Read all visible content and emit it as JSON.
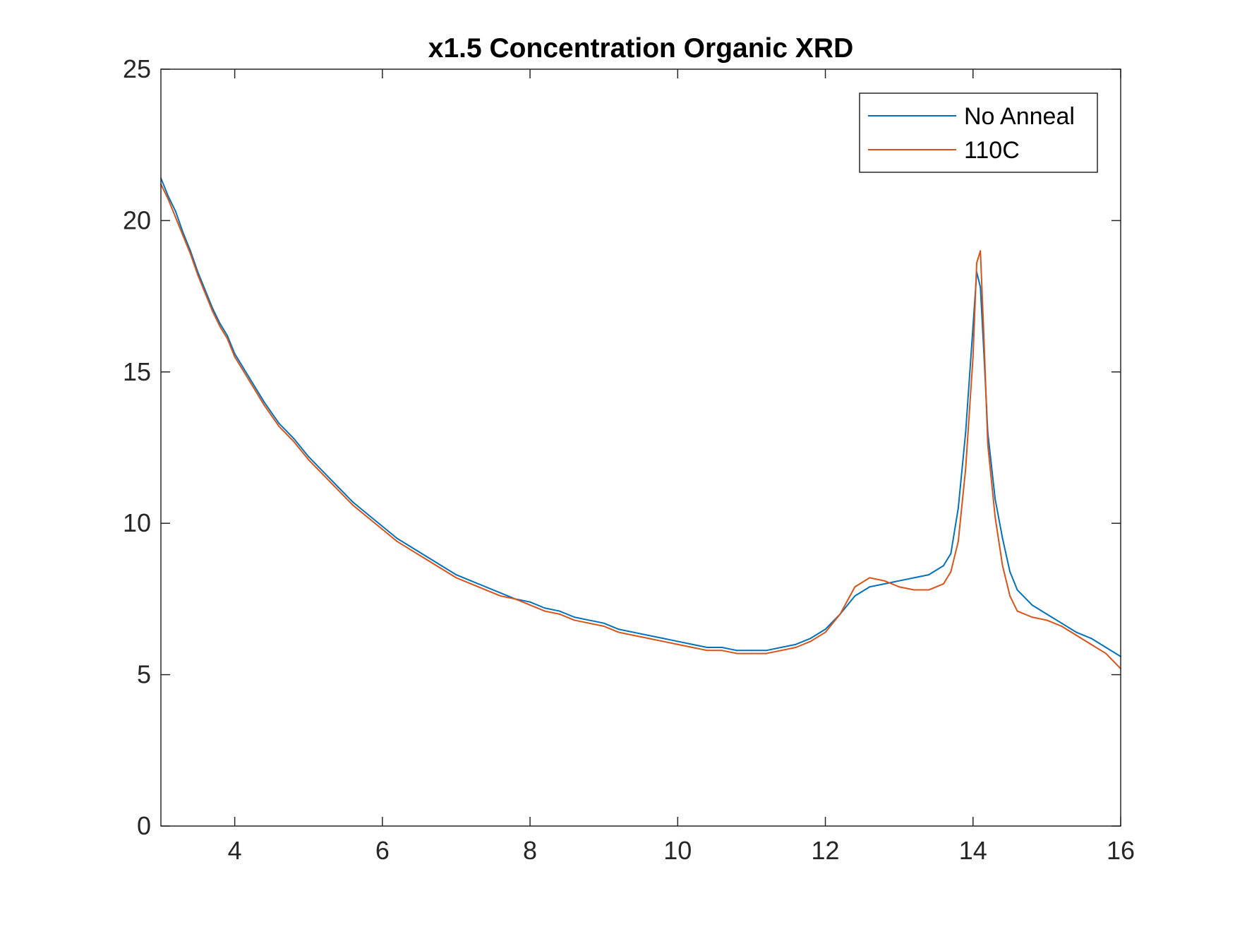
{
  "chart_data": {
    "type": "line",
    "title": "x1.5 Concentration Organic XRD",
    "xlabel": "",
    "ylabel": "",
    "xlim": [
      3,
      16
    ],
    "ylim": [
      0,
      25
    ],
    "xticks": [
      "4",
      "6",
      "8",
      "10",
      "12",
      "14",
      "16"
    ],
    "yticks": [
      "0",
      "5",
      "10",
      "15",
      "20",
      "25"
    ],
    "grid": false,
    "legend_position": "top-right",
    "series": [
      {
        "name": "No Anneal",
        "color": "#0072BD",
        "x": [
          3.0,
          3.1,
          3.2,
          3.3,
          3.4,
          3.5,
          3.6,
          3.7,
          3.8,
          3.9,
          4.0,
          4.2,
          4.4,
          4.6,
          4.8,
          5.0,
          5.2,
          5.4,
          5.6,
          5.8,
          6.0,
          6.2,
          6.4,
          6.6,
          6.8,
          7.0,
          7.2,
          7.4,
          7.6,
          7.8,
          8.0,
          8.2,
          8.4,
          8.6,
          8.8,
          9.0,
          9.2,
          9.4,
          9.6,
          9.8,
          10.0,
          10.2,
          10.4,
          10.6,
          10.8,
          11.0,
          11.2,
          11.4,
          11.6,
          11.8,
          12.0,
          12.2,
          12.4,
          12.6,
          12.8,
          13.0,
          13.2,
          13.4,
          13.6,
          13.7,
          13.8,
          13.9,
          14.0,
          14.05,
          14.1,
          14.15,
          14.2,
          14.3,
          14.4,
          14.5,
          14.6,
          14.8,
          15.0,
          15.2,
          15.4,
          15.6,
          15.8,
          16.0
        ],
        "y": [
          21.4,
          20.8,
          20.3,
          19.6,
          19.0,
          18.3,
          17.7,
          17.1,
          16.6,
          16.2,
          15.6,
          14.8,
          14.0,
          13.3,
          12.8,
          12.2,
          11.7,
          11.2,
          10.7,
          10.3,
          9.9,
          9.5,
          9.2,
          8.9,
          8.6,
          8.3,
          8.1,
          7.9,
          7.7,
          7.5,
          7.4,
          7.2,
          7.1,
          6.9,
          6.8,
          6.7,
          6.5,
          6.4,
          6.3,
          6.2,
          6.1,
          6.0,
          5.9,
          5.9,
          5.8,
          5.8,
          5.8,
          5.9,
          6.0,
          6.2,
          6.5,
          7.0,
          7.6,
          7.9,
          8.0,
          8.1,
          8.2,
          8.3,
          8.6,
          9.0,
          10.5,
          13.0,
          16.5,
          18.3,
          17.8,
          15.5,
          13.0,
          10.8,
          9.5,
          8.4,
          7.8,
          7.3,
          7.0,
          6.7,
          6.4,
          6.2,
          5.9,
          5.6
        ]
      },
      {
        "name": "110C",
        "color": "#D95319",
        "x": [
          3.0,
          3.1,
          3.2,
          3.3,
          3.4,
          3.5,
          3.6,
          3.7,
          3.8,
          3.9,
          4.0,
          4.2,
          4.4,
          4.6,
          4.8,
          5.0,
          5.2,
          5.4,
          5.6,
          5.8,
          6.0,
          6.2,
          6.4,
          6.6,
          6.8,
          7.0,
          7.2,
          7.4,
          7.6,
          7.8,
          8.0,
          8.2,
          8.4,
          8.6,
          8.8,
          9.0,
          9.2,
          9.4,
          9.6,
          9.8,
          10.0,
          10.2,
          10.4,
          10.6,
          10.8,
          11.0,
          11.2,
          11.4,
          11.6,
          11.8,
          12.0,
          12.2,
          12.4,
          12.6,
          12.8,
          13.0,
          13.2,
          13.4,
          13.6,
          13.7,
          13.8,
          13.9,
          14.0,
          14.05,
          14.1,
          14.15,
          14.2,
          14.3,
          14.4,
          14.5,
          14.6,
          14.8,
          15.0,
          15.2,
          15.4,
          15.6,
          15.8,
          16.0
        ],
        "y": [
          21.2,
          20.7,
          20.1,
          19.5,
          18.9,
          18.2,
          17.6,
          17.0,
          16.5,
          16.1,
          15.5,
          14.7,
          13.9,
          13.2,
          12.7,
          12.1,
          11.6,
          11.1,
          10.6,
          10.2,
          9.8,
          9.4,
          9.1,
          8.8,
          8.5,
          8.2,
          8.0,
          7.8,
          7.6,
          7.5,
          7.3,
          7.1,
          7.0,
          6.8,
          6.7,
          6.6,
          6.4,
          6.3,
          6.2,
          6.1,
          6.0,
          5.9,
          5.8,
          5.8,
          5.7,
          5.7,
          5.7,
          5.8,
          5.9,
          6.1,
          6.4,
          7.0,
          7.9,
          8.2,
          8.1,
          7.9,
          7.8,
          7.8,
          8.0,
          8.4,
          9.4,
          11.8,
          15.5,
          18.6,
          19.0,
          16.0,
          12.6,
          10.2,
          8.6,
          7.6,
          7.1,
          6.9,
          6.8,
          6.6,
          6.3,
          6.0,
          5.7,
          5.2
        ]
      }
    ]
  }
}
